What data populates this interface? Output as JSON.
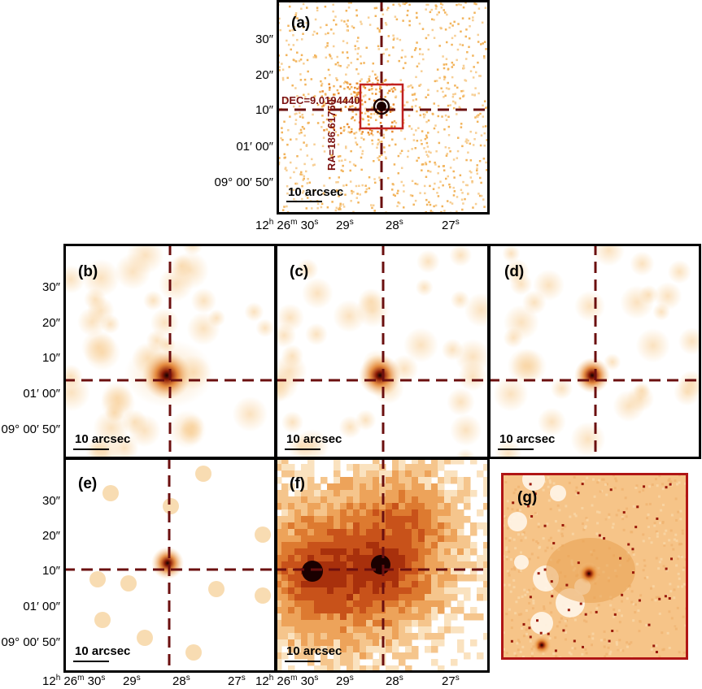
{
  "panels": {
    "a": {
      "label": "(a)",
      "scale": "10 arcsec",
      "dec_label": "DEC=9.0194440",
      "ra_label": "RA=186.61750"
    },
    "b": {
      "label": "(b)",
      "scale": "10 arcsec"
    },
    "c": {
      "label": "(c)",
      "scale": "10 arcsec"
    },
    "d": {
      "label": "(d)",
      "scale": "10 arcsec"
    },
    "e": {
      "label": "(e)",
      "scale": "10 arcsec"
    },
    "f": {
      "label": "(f)",
      "scale": "10 arcsec"
    },
    "g": {
      "label": "(g)"
    }
  },
  "y_ticks": {
    "t30": "30″",
    "t20": "20″",
    "t10": "10″",
    "t0100": "01′ 00″",
    "t0900": "09° 00′ 50″"
  },
  "x_ticks": {
    "h": "12",
    "h_sup": "h",
    "m": "26",
    "m_sup": "m",
    "s30": "30",
    "s30_sup": "s",
    "s29": "29",
    "s29_sup": "s",
    "s28": "28",
    "s28_sup": "s",
    "s27": "27",
    "s27_sup": "s"
  },
  "colors": {
    "crosshair": "#6b0f0f",
    "box": "#c02020",
    "heat_low": "#f7c98a",
    "heat_mid": "#e07a25",
    "heat_high": "#8a1a05",
    "frame_g": "#b01515"
  }
}
